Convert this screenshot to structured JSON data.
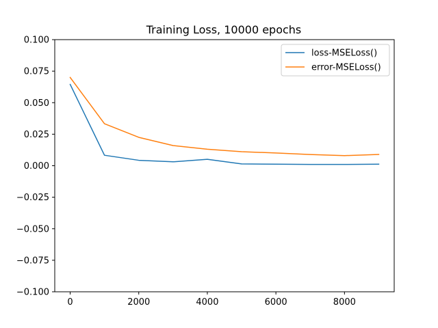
{
  "chart_data": {
    "type": "line",
    "title": "Training Loss, 10000 epochs",
    "xlabel": "",
    "ylabel": "",
    "xlim": [
      -450,
      9450
    ],
    "ylim": [
      -0.1,
      0.1
    ],
    "x_ticks": [
      0,
      2000,
      4000,
      6000,
      8000
    ],
    "x_tick_labels": [
      "0",
      "2000",
      "4000",
      "6000",
      "8000"
    ],
    "y_ticks": [
      -0.1,
      -0.075,
      -0.05,
      -0.025,
      0.0,
      0.025,
      0.05,
      0.075,
      0.1
    ],
    "y_tick_labels": [
      "−0.100",
      "−0.075",
      "−0.050",
      "−0.025",
      "0.000",
      "0.025",
      "0.050",
      "0.075",
      "0.100"
    ],
    "grid": false,
    "legend_position": "top-right",
    "x": [
      0,
      1000,
      2000,
      3000,
      4000,
      5000,
      6000,
      7000,
      8000,
      9000
    ],
    "series": [
      {
        "name": "loss-MSELoss()",
        "color": "#1f77b4",
        "values": [
          0.0645,
          0.0083,
          0.0043,
          0.0031,
          0.0051,
          0.0014,
          0.0012,
          0.001,
          0.001,
          0.0012
        ]
      },
      {
        "name": "error-MSELoss()",
        "color": "#ff7f0e",
        "values": [
          0.07,
          0.0333,
          0.0225,
          0.016,
          0.0131,
          0.0111,
          0.0101,
          0.0089,
          0.008,
          0.0089
        ]
      }
    ]
  }
}
